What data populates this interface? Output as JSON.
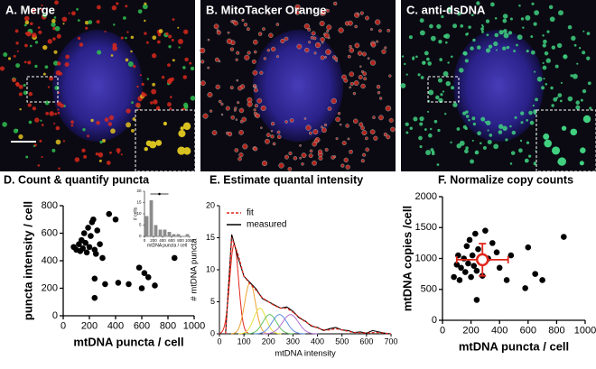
{
  "panels": [
    {
      "label": "A. Merge"
    },
    {
      "label": "B. MitoTacker Orange"
    },
    {
      "label": "C. anti-dsDNA"
    }
  ],
  "chart_data": [
    {
      "type": "scatter",
      "title": "D. Count & quantify puncta",
      "xlabel": "mtDNA puncta / cell",
      "ylabel": "puncta intensity / cell",
      "xlim": [
        0,
        1000
      ],
      "xticks": [
        0,
        200,
        400,
        600,
        800,
        1000
      ],
      "ylim": [
        0,
        800
      ],
      "yticks": [
        0,
        200,
        400,
        600,
        800
      ],
      "color": "#000000",
      "x": [
        80,
        100,
        120,
        130,
        140,
        150,
        160,
        170,
        180,
        190,
        200,
        210,
        220,
        230,
        240,
        250,
        260,
        280,
        300,
        320,
        350,
        400,
        420,
        500,
        580,
        600,
        620,
        650,
        700,
        240,
        850,
        240
      ],
      "y": [
        500,
        480,
        520,
        470,
        550,
        490,
        600,
        530,
        460,
        640,
        500,
        580,
        680,
        700,
        270,
        450,
        620,
        520,
        420,
        230,
        740,
        700,
        240,
        230,
        350,
        200,
        310,
        280,
        220,
        130,
        420,
        480
      ],
      "inset": {
        "type": "histogram",
        "xlabel": "mtDNA puncta / cell",
        "ylabel": "# cells",
        "bins": [
          0,
          100,
          200,
          300,
          400,
          500,
          600,
          700,
          800,
          900,
          1000
        ],
        "counts": [
          9,
          16,
          5,
          3,
          3,
          2,
          1,
          1,
          0,
          1
        ],
        "color": "#8c8c8c",
        "xlim": [
          0,
          1000
        ],
        "xticks": [
          0,
          200,
          400,
          600,
          800,
          1000
        ],
        "ylim": [
          0,
          20
        ],
        "yticks": [
          0,
          5,
          10,
          15,
          20
        ],
        "mean": 330,
        "sd": 200
      }
    },
    {
      "type": "line",
      "title": "E. Estimate quantal intensity",
      "xlabel": "mtDNA intensity",
      "ylabel": "# mtDNA puncta",
      "xlim": [
        0,
        700
      ],
      "xticks": [
        0,
        100,
        200,
        300,
        400,
        500,
        600,
        700
      ],
      "ylim": [
        0,
        20
      ],
      "yticks": [
        0,
        5,
        10,
        15,
        20
      ],
      "x": [
        25,
        50,
        75,
        100,
        125,
        150,
        175,
        200,
        225,
        250,
        275,
        300,
        325,
        350,
        375,
        400,
        425,
        450,
        475,
        500,
        525,
        550,
        575,
        600,
        625,
        650,
        675,
        700
      ],
      "series": [
        {
          "name": "fit",
          "color": "#e0261b",
          "dashed": true,
          "values": [
            0,
            15,
            12.5,
            9,
            7.8,
            6.8,
            5.6,
            5,
            4.4,
            4,
            4,
            3.4,
            2.6,
            1.9,
            1.3,
            0.9,
            0.6,
            0.6,
            0.8,
            0.6,
            0.4,
            0.2,
            0.2,
            0.1,
            0.2,
            0.2,
            0.1,
            0
          ]
        },
        {
          "name": "measured",
          "color": "#000000",
          "values": [
            0,
            15.5,
            12,
            9,
            8,
            7,
            5.5,
            5,
            4.5,
            4,
            4.2,
            3.5,
            2.5,
            2,
            1.2,
            1,
            0.5,
            0.8,
            1,
            0.6,
            0.5,
            0.2,
            0.3,
            0.1,
            0.5,
            0.3,
            0.1,
            0
          ]
        }
      ],
      "components": [
        {
          "color": "#e0261b",
          "mean": 60,
          "sd": 18,
          "peak": 14
        },
        {
          "color": "#f0a030",
          "mean": 125,
          "sd": 22,
          "peak": 8
        },
        {
          "color": "#e8e040",
          "mean": 165,
          "sd": 25,
          "peak": 4
        },
        {
          "color": "#60c060",
          "mean": 205,
          "sd": 28,
          "peak": 3
        },
        {
          "color": "#6090e0",
          "mean": 245,
          "sd": 30,
          "peak": 3
        },
        {
          "color": "#b070d0",
          "mean": 290,
          "sd": 32,
          "peak": 3
        }
      ]
    },
    {
      "type": "scatter",
      "title": "F. Normalize copy counts",
      "xlabel": "mtDNA puncta / cell",
      "ylabel": "mtDNA copies /cell",
      "xlim": [
        0,
        1000
      ],
      "xticks": [
        0,
        200,
        400,
        600,
        800,
        1000
      ],
      "ylim": [
        0,
        2000
      ],
      "yticks": [
        0,
        500,
        1000,
        1500,
        2000
      ],
      "color": "#000000",
      "x": [
        80,
        100,
        110,
        120,
        130,
        150,
        160,
        170,
        180,
        190,
        200,
        210,
        220,
        230,
        240,
        250,
        260,
        280,
        300,
        320,
        350,
        380,
        400,
        450,
        480,
        580,
        600,
        650,
        700,
        850,
        240
      ],
      "y": [
        700,
        900,
        1050,
        650,
        850,
        1000,
        780,
        1200,
        920,
        1300,
        700,
        1050,
        880,
        1400,
        330,
        1150,
        960,
        720,
        1450,
        1000,
        1250,
        1100,
        850,
        650,
        1050,
        520,
        1180,
        750,
        650,
        1350,
        800
      ],
      "mean": {
        "x": 280,
        "y": 980,
        "xerr": 180,
        "yerr": 260,
        "color": "#e0261b"
      }
    }
  ]
}
